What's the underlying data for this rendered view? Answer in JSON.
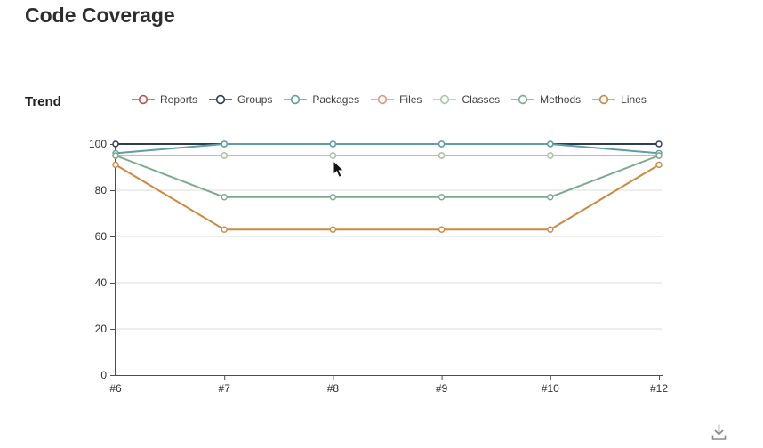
{
  "page": {
    "title": "Code Coverage"
  },
  "section": {
    "heading": "Trend"
  },
  "chart_data": {
    "type": "line",
    "title": "Trend",
    "x": [
      "#6",
      "#7",
      "#8",
      "#9",
      "#10",
      "#12"
    ],
    "series": [
      {
        "name": "Reports",
        "color": "#c0504d",
        "values": [
          95,
          95,
          95,
          95,
          95,
          95
        ]
      },
      {
        "name": "Groups",
        "color": "#2c3e4f",
        "values": [
          100,
          100,
          100,
          100,
          100,
          100
        ]
      },
      {
        "name": "Packages",
        "color": "#5f9fa3",
        "values": [
          96,
          100,
          100,
          100,
          100,
          96
        ]
      },
      {
        "name": "Files",
        "color": "#e09479",
        "values": [
          95,
          95,
          95,
          95,
          95,
          95
        ]
      },
      {
        "name": "Classes",
        "color": "#aac7ae",
        "values": [
          95,
          95,
          95,
          95,
          95,
          95
        ]
      },
      {
        "name": "Methods",
        "color": "#7ca98c",
        "values": [
          95,
          77,
          77,
          77,
          77,
          95
        ]
      },
      {
        "name": "Lines",
        "color": "#cd8840",
        "values": [
          91,
          63,
          63,
          63,
          63,
          91
        ]
      }
    ],
    "xlabel": "",
    "ylabel": "",
    "ylim": [
      0,
      100
    ],
    "yticks": [
      0,
      20,
      40,
      60,
      80,
      100
    ],
    "grid": true,
    "legend_position": "top",
    "marker": "circle"
  },
  "colors": {
    "grid": "#dcdcdc",
    "axis": "#4d4d4d"
  },
  "icons": {
    "download": "download-icon",
    "cursor": "mouse-cursor"
  }
}
